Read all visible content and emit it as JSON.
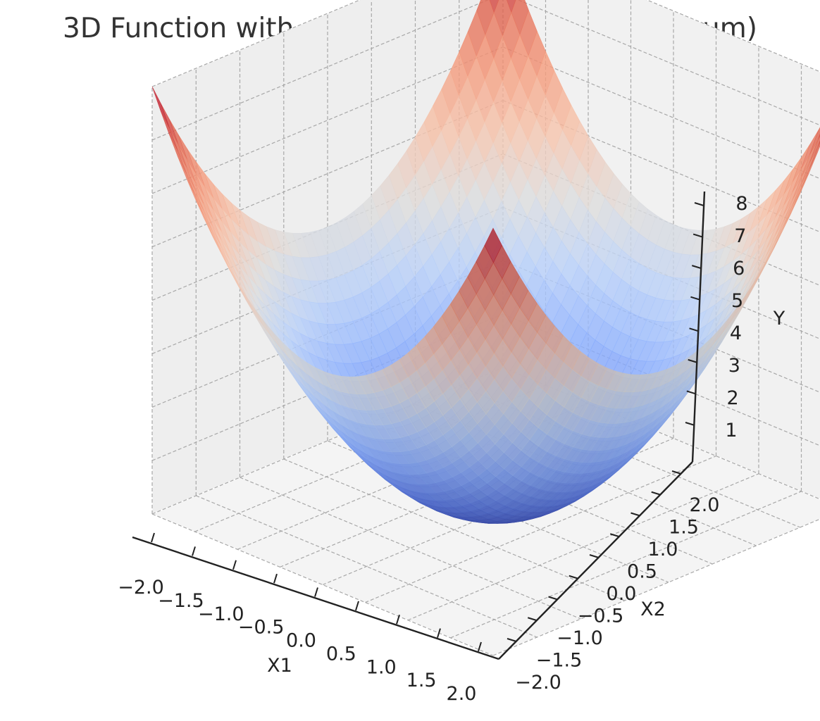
{
  "chart_data": {
    "type": "surface3d",
    "title": "3D Function with a Single Valley (Global Minimum)",
    "function": "Y = X1^2 + X2^2",
    "xlabel": "X1",
    "ylabel": "X2",
    "zlabel": "Y",
    "xlim": [
      -2,
      2
    ],
    "ylim": [
      -2,
      2
    ],
    "zlim": [
      0,
      8
    ],
    "xticks": [
      "−2.0",
      "−1.5",
      "−1.0",
      "−0.5",
      "0.0",
      "0.5",
      "1.0",
      "1.5",
      "2.0"
    ],
    "yticks": [
      "−2.0",
      "−1.5",
      "−1.0",
      "−0.5",
      "0.0",
      "0.5",
      "1.0",
      "1.5",
      "2.0"
    ],
    "zticks": [
      "1",
      "2",
      "3",
      "4",
      "5",
      "6",
      "7",
      "8"
    ],
    "grid": true,
    "colormap": "coolwarm",
    "colors": {
      "low": "#3b4cc0",
      "mid": "#dddddd",
      "high": "#b40426"
    },
    "surface_min": {
      "x1": 0,
      "x2": 0,
      "y": 0
    },
    "surface_max": 8
  }
}
